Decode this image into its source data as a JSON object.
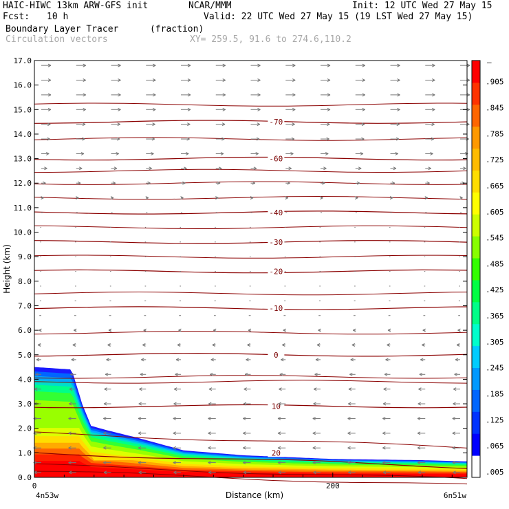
{
  "header": {
    "model": "HAIC-HIWC 13km ARW-GFS init",
    "org": "NCAR/MMM",
    "init": "Init: 12 UTC Wed 27 May 15",
    "fcst_label": "Fcst:",
    "fcst_value": "10 h",
    "valid": "Valid: 22 UTC Wed 27 May 15 (19 LST Wed 27 May 15)",
    "field": "Boundary Layer Tracer",
    "field_units": "(fraction)",
    "vectors": "Circulation vectors",
    "xy": "XY= 259.5, 91.6 to 274.6,110.2"
  },
  "chart_data": {
    "type": "heatmap",
    "title": "Boundary Layer Tracer",
    "units": "(fraction)",
    "xlabel": "Distance (km)",
    "ylabel": "Height (km)",
    "xlim": [
      0,
      290
    ],
    "ylim": [
      0,
      17
    ],
    "x_ticks": [
      {
        "value": 0,
        "label": "0"
      },
      {
        "value": 200,
        "label": "200"
      }
    ],
    "x_end_labels": {
      "left": "4n53w",
      "right": "6n51w"
    },
    "y_ticks": [
      "0.0",
      "1.0",
      "2.0",
      "3.0",
      "4.0",
      "5.0",
      "6.0",
      "7.0",
      "8.0",
      "9.0",
      "10.0",
      "11.0",
      "12.0",
      "13.0",
      "14.0",
      "15.0",
      "16.0",
      "17.0"
    ],
    "colorbar": {
      "labels": [
        ".005",
        ".065",
        ".125",
        ".185",
        ".245",
        ".305",
        ".365",
        ".425",
        ".485",
        ".545",
        ".605",
        ".665",
        ".725",
        ".785",
        ".845",
        ".905"
      ],
      "top_label": "–",
      "colors": [
        "#ffffff",
        "#0000ff",
        "#0033ff",
        "#0066ff",
        "#0099ff",
        "#00ccff",
        "#00ffcc",
        "#00ff88",
        "#00ff44",
        "#33ff00",
        "#88ff00",
        "#ccff00",
        "#ffff00",
        "#ffdd00",
        "#ffbb00",
        "#ff9900",
        "#ff6600",
        "#ff3300",
        "#ff0000"
      ]
    },
    "tracer_profile_top_km": [
      {
        "x": 0,
        "z": 4.5
      },
      {
        "x": 25,
        "z": 4.4
      },
      {
        "x": 32,
        "z": 3.0
      },
      {
        "x": 38,
        "z": 2.1
      },
      {
        "x": 50,
        "z": 1.9
      },
      {
        "x": 70,
        "z": 1.6
      },
      {
        "x": 100,
        "z": 1.1
      },
      {
        "x": 140,
        "z": 0.9
      },
      {
        "x": 200,
        "z": 0.75
      },
      {
        "x": 260,
        "z": 0.7
      },
      {
        "x": 290,
        "z": 0.65
      }
    ],
    "isotherms": [
      {
        "label": "20",
        "z": 1.0
      },
      {
        "label": "10",
        "z": 2.9
      },
      {
        "label": "0",
        "z": 5.0
      },
      {
        "label": "-10",
        "z": 6.9
      },
      {
        "label": "-20",
        "z": 8.4
      },
      {
        "label": "-30",
        "z": 9.6
      },
      {
        "label": "-40",
        "z": 10.8
      },
      {
        "label": "-60",
        "z": 13.0
      },
      {
        "label": "-70",
        "z": 14.5
      }
    ],
    "isotherm_unlabeled_z": [
      0.25,
      0.5,
      1.8,
      3.9,
      4.1,
      5.9,
      7.5,
      9.0,
      10.2,
      11.4,
      12.0,
      12.5,
      13.8,
      15.2
    ],
    "vector_rows": [
      {
        "z": 16.8,
        "dir": 1,
        "len": 1.0
      },
      {
        "z": 16.2,
        "dir": 1,
        "len": 1.0
      },
      {
        "z": 15.6,
        "dir": 1,
        "len": 1.0
      },
      {
        "z": 15.0,
        "dir": 1,
        "len": 1.0
      },
      {
        "z": 14.4,
        "dir": 1,
        "len": 0.95
      },
      {
        "z": 13.8,
        "dir": 1,
        "len": 0.9
      },
      {
        "z": 13.2,
        "dir": 1,
        "len": 0.8
      },
      {
        "z": 12.6,
        "dir": 1,
        "len": 0.6
      },
      {
        "z": 12.0,
        "dir": 1,
        "len": 0.45
      },
      {
        "z": 11.4,
        "dir": 1,
        "len": 0.25
      },
      {
        "z": 10.8,
        "dir": 1,
        "len": 0.15
      },
      {
        "z": 10.2,
        "dir": -1,
        "len": 0.1
      },
      {
        "z": 9.6,
        "dir": -1,
        "len": 0.12
      },
      {
        "z": 9.0,
        "dir": -1,
        "len": 0.1
      },
      {
        "z": 8.4,
        "dir": -1,
        "len": 0.1
      },
      {
        "z": 7.8,
        "dir": -1,
        "len": 0.12
      },
      {
        "z": 7.2,
        "dir": -1,
        "len": 0.15
      },
      {
        "z": 6.6,
        "dir": -1,
        "len": 0.2
      },
      {
        "z": 6.0,
        "dir": -1,
        "len": 0.25
      },
      {
        "z": 5.4,
        "dir": -1,
        "len": 0.35
      },
      {
        "z": 4.8,
        "dir": -1,
        "len": 0.5
      },
      {
        "z": 4.2,
        "dir": -1,
        "len": 0.6
      },
      {
        "z": 3.6,
        "dir": -1,
        "len": 0.7
      },
      {
        "z": 3.0,
        "dir": -1,
        "len": 0.75
      },
      {
        "z": 2.4,
        "dir": -1,
        "len": 0.8
      },
      {
        "z": 1.8,
        "dir": -1,
        "len": 0.8
      },
      {
        "z": 1.2,
        "dir": -1,
        "len": 0.8
      },
      {
        "z": 0.6,
        "dir": -1,
        "len": 0.8
      },
      {
        "z": 0.2,
        "dir": -1,
        "len": 0.75
      }
    ],
    "vector_columns": 13,
    "grid": false
  }
}
